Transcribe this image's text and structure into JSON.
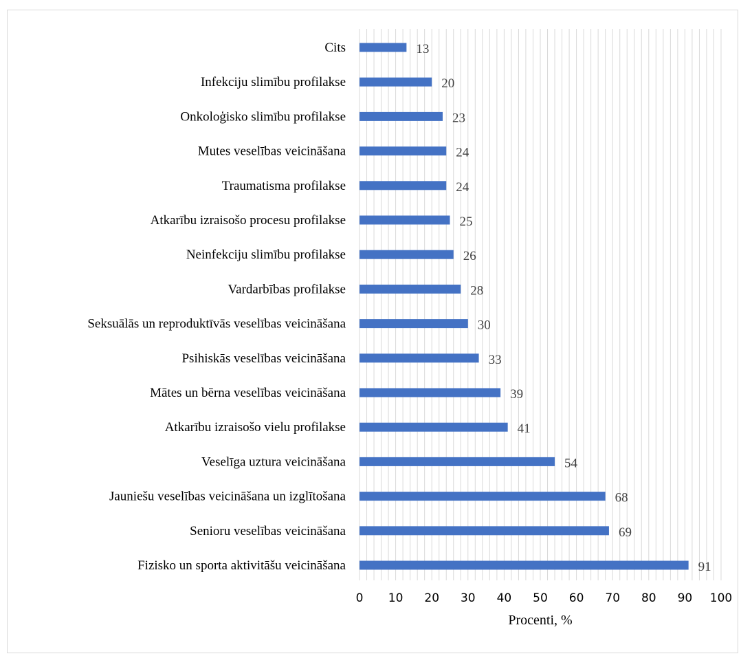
{
  "chart_data": {
    "type": "bar",
    "orientation": "horizontal",
    "categories": [
      "Cits",
      "Infekciju slimību profilakse",
      "Onkoloģisko slimību profilakse",
      "Mutes veselības veicināšana",
      "Traumatisma profilakse",
      "Atkarību izraisošo procesu profilakse",
      "Neinfekciju slimību profilakse",
      "Vardarbības profilakse",
      "Seksuālās un reproduktīvās veselības veicināšana",
      "Psihiskās veselības veicināšana",
      "Mātes un bērna veselības veicināšana",
      "Atkarību izraisošo vielu profilakse",
      "Veselīga uztura veicināšana",
      "Jauniešu veselības veicināšana un izglītošana",
      "Senioru veselības veicināšana",
      "Fizisko un sporta aktivitāšu veicināšana"
    ],
    "values": [
      13,
      20,
      23,
      24,
      24,
      25,
      26,
      28,
      30,
      33,
      39,
      41,
      54,
      68,
      69,
      91
    ],
    "xlabel": "Procenti, %",
    "ylabel": "",
    "title": "",
    "xlim": [
      0,
      100
    ],
    "xticks": [
      "0",
      "10",
      "20",
      "30",
      "40",
      "50",
      "60",
      "70",
      "80",
      "90",
      "100"
    ],
    "grid": "vertical minor gridlines",
    "bar_color": "#4472C4",
    "grid_color": "#d9d9d9",
    "data_labels": true
  }
}
